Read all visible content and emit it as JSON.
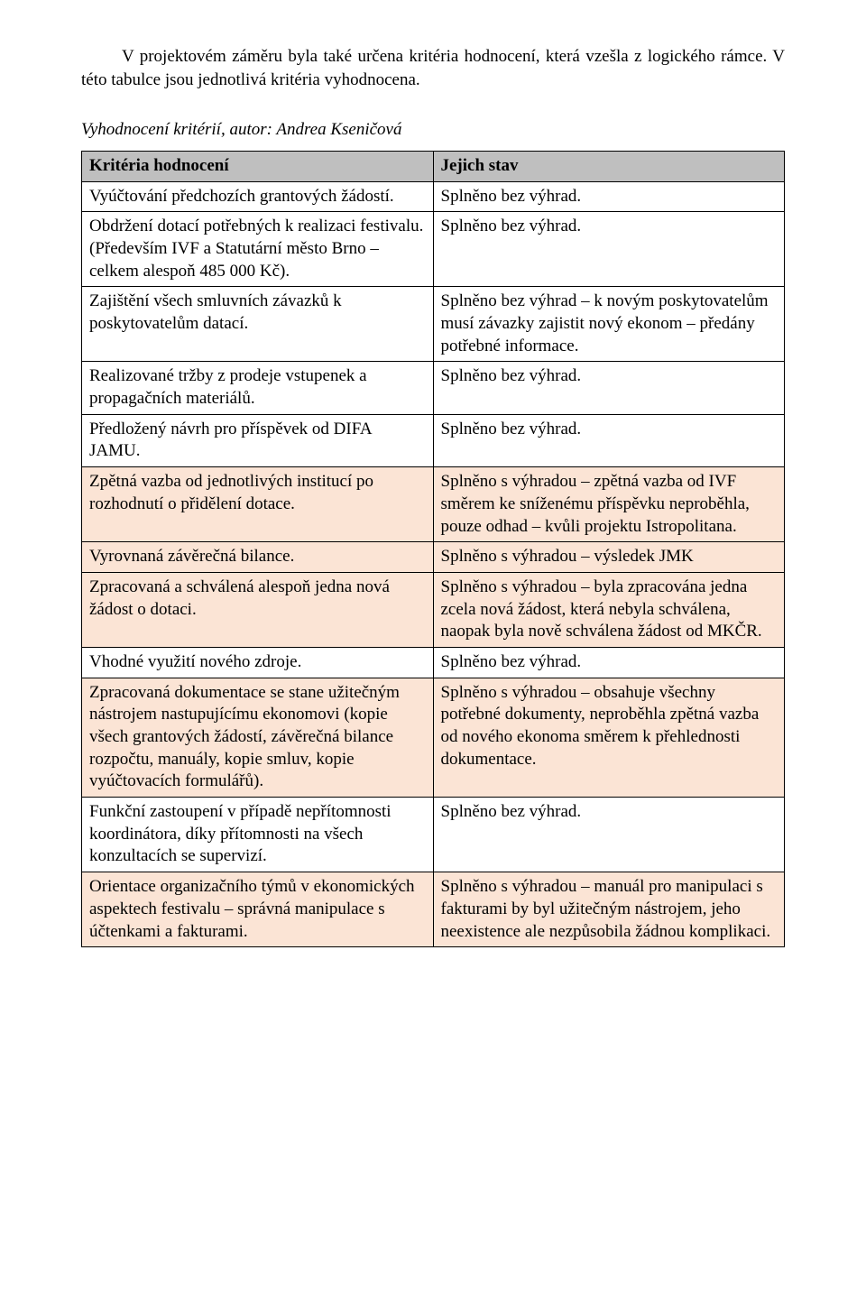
{
  "intro": "V projektovém záměru byla také určena kritéria hodnocení, která vzešla z logického rámce. V této tabulce jsou jednotlivá kritéria vyhodnocena.",
  "caption": "Vyhodnocení kritérií, autor: Andrea Kseničová",
  "table": {
    "header_bg": "#bfbfbf",
    "row_alt_bg": "#fbe4d5",
    "headers": {
      "left": "Kritéria hodnocení",
      "right": "Jejich stav"
    },
    "rows": [
      {
        "left": "Vyúčtování předchozích grantových žádostí.",
        "right": "Splněno bez výhrad.",
        "highlight": false
      },
      {
        "left": "Obdržení dotací potřebných k realizaci festivalu. (Především IVF a Statutární město Brno – celkem alespoň 485 000 Kč).",
        "right": "Splněno bez výhrad.",
        "highlight": false
      },
      {
        "left": "Zajištění všech smluvních závazků k poskytovatelům datací.",
        "right": "Splněno bez výhrad – k novým poskytovatelům musí závazky zajistit nový ekonom – předány potřebné informace.",
        "highlight": false
      },
      {
        "left": "Realizované tržby z prodeje vstupenek a propagačních materiálů.",
        "right": "Splněno bez výhrad.",
        "highlight": false
      },
      {
        "left": "Předložený návrh pro příspěvek od DIFA JAMU.",
        "right": "Splněno bez výhrad.",
        "highlight": false
      },
      {
        "left": "Zpětná vazba od jednotlivých institucí po rozhodnutí o přidělení dotace.",
        "right": "Splněno s výhradou – zpětná vazba od IVF směrem ke sníženému příspěvku neproběhla, pouze odhad – kvůli projektu Istropolitana.",
        "highlight": true
      },
      {
        "left": "Vyrovnaná závěrečná bilance.",
        "right": "Splněno s výhradou – výsledek JMK",
        "highlight": true
      },
      {
        "left": "Zpracovaná a schválená alespoň jedna nová žádost o dotaci.",
        "right": "Splněno s výhradou – byla zpracována jedna zcela nová žádost, která nebyla schválena, naopak byla nově schválena žádost od MKČR.",
        "highlight": true
      },
      {
        "left": "Vhodné využití nového zdroje.",
        "right": "Splněno bez výhrad.",
        "highlight": false
      },
      {
        "left": "Zpracovaná dokumentace se stane užitečným nástrojem nastupujícímu ekonomovi (kopie všech grantových žádostí, závěrečná bilance rozpočtu, manuály, kopie smluv, kopie vyúčtovacích formulářů).",
        "right": "Splněno s výhradou – obsahuje všechny potřebné dokumenty, neproběhla zpětná vazba od nového ekonoma směrem k přehlednosti dokumentace.",
        "highlight": true
      },
      {
        "left": "Funkční zastoupení v případě nepřítomnosti koordinátora, díky přítomnosti na všech konzultacích se supervizí.",
        "right": "Splněno bez výhrad.",
        "highlight": false
      },
      {
        "left": "Orientace organizačního týmů v ekonomických aspektech festivalu – správná manipulace s účtenkami a fakturami.",
        "right": "Splněno s výhradou – manuál pro manipulaci s fakturami by byl užitečným nástrojem, jeho neexistence ale nezpůsobila žádnou komplikaci.",
        "highlight": true
      }
    ]
  }
}
